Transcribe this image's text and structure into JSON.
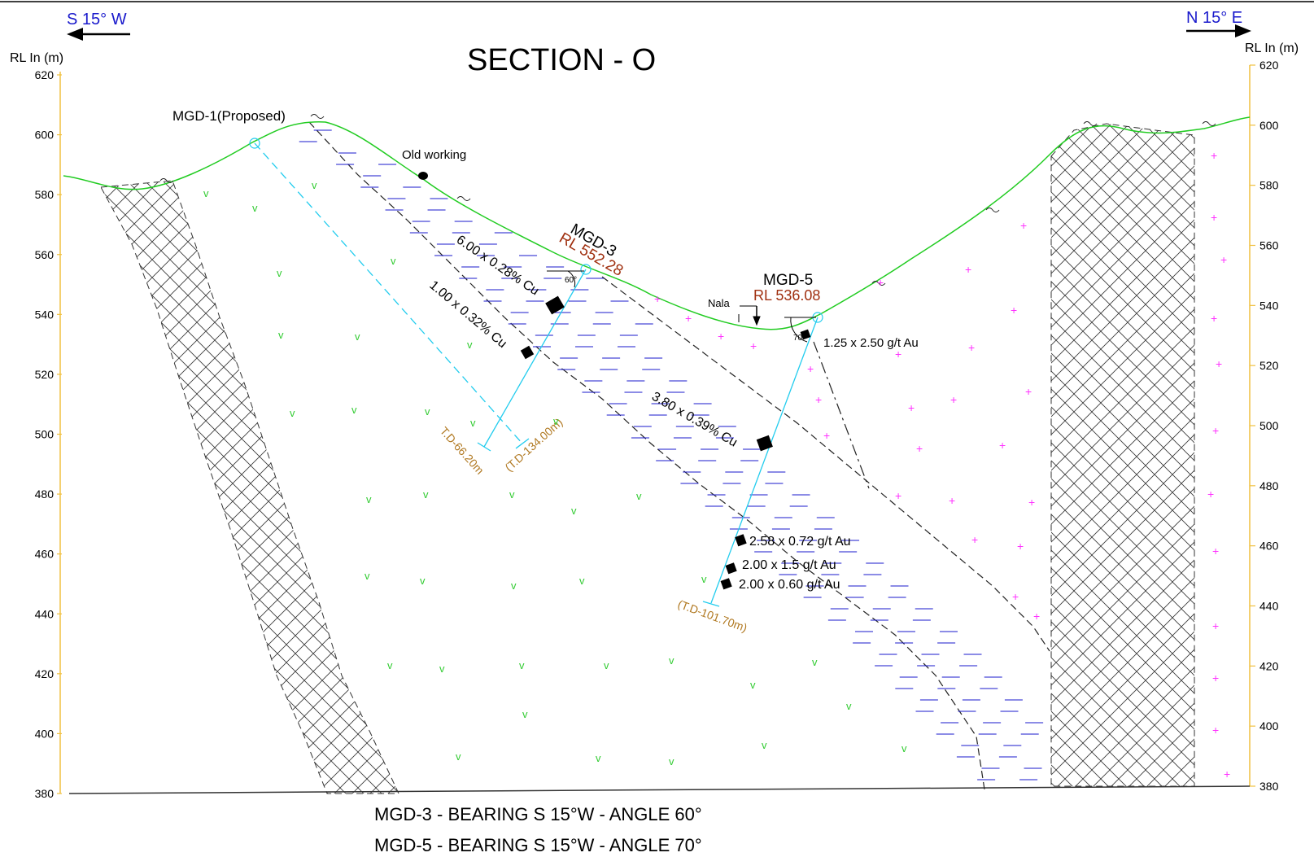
{
  "title": "SECTION - O",
  "directions": {
    "left": "S 15° W",
    "right": "N 15° E"
  },
  "axes": {
    "left_label": "RL In (m)",
    "right_label": "RL In (m)",
    "left_ticks": [
      "620",
      "600",
      "580",
      "560",
      "540",
      "520",
      "500",
      "480",
      "460",
      "440",
      "420",
      "400",
      "380"
    ],
    "right_ticks": [
      "620",
      "600",
      "580",
      "560",
      "540",
      "520",
      "500",
      "480",
      "460",
      "440",
      "420",
      "400",
      "380"
    ]
  },
  "labels": {
    "old_working": "Old working",
    "nala": "Nala",
    "mgd1": "MGD-1(Proposed)",
    "mgd3": "MGD-3",
    "mgd3_rl": "RL 552.28",
    "mgd5": "MGD-5",
    "mgd5_rl": "RL 536.08",
    "angle60": "60°",
    "angle70": "70°",
    "td_mgd1": "T.D-66.20m",
    "td_mgd3": "(T.D-134.00m)",
    "td_mgd5": "(T.D-101.70m)",
    "int_mgd3_1": "6.00 x 0.28% Cu",
    "int_mgd3_2": "1.00 x 0.32% Cu",
    "int_mgd5_1": "3.80 x 0.39% Cu",
    "int_mgd5_au1": "1.25 x 2.50 g/t Au",
    "int_mgd5_au2": "2.58 x 0.72 g/t Au",
    "int_mgd5_au3": "2.00 x 1.5 g/t Au",
    "int_mgd5_au4": "2.00 x 0.60 g/t Au"
  },
  "footer": {
    "line1": "MGD-3 - BEARING  S 15°W - ANGLE 60°",
    "line2": "MGD-5 - BEARING  S 15°W - ANGLE 70°"
  },
  "colors": {
    "topography": "#22cc22",
    "ore": "#1a1acc",
    "drill": "#22ccee",
    "td": "#b07820",
    "rl": "#a03010",
    "axis": "#f0c040",
    "direction": "#1a1acc",
    "granite": "#ff33ff",
    "volcanic": "#33cc33"
  }
}
